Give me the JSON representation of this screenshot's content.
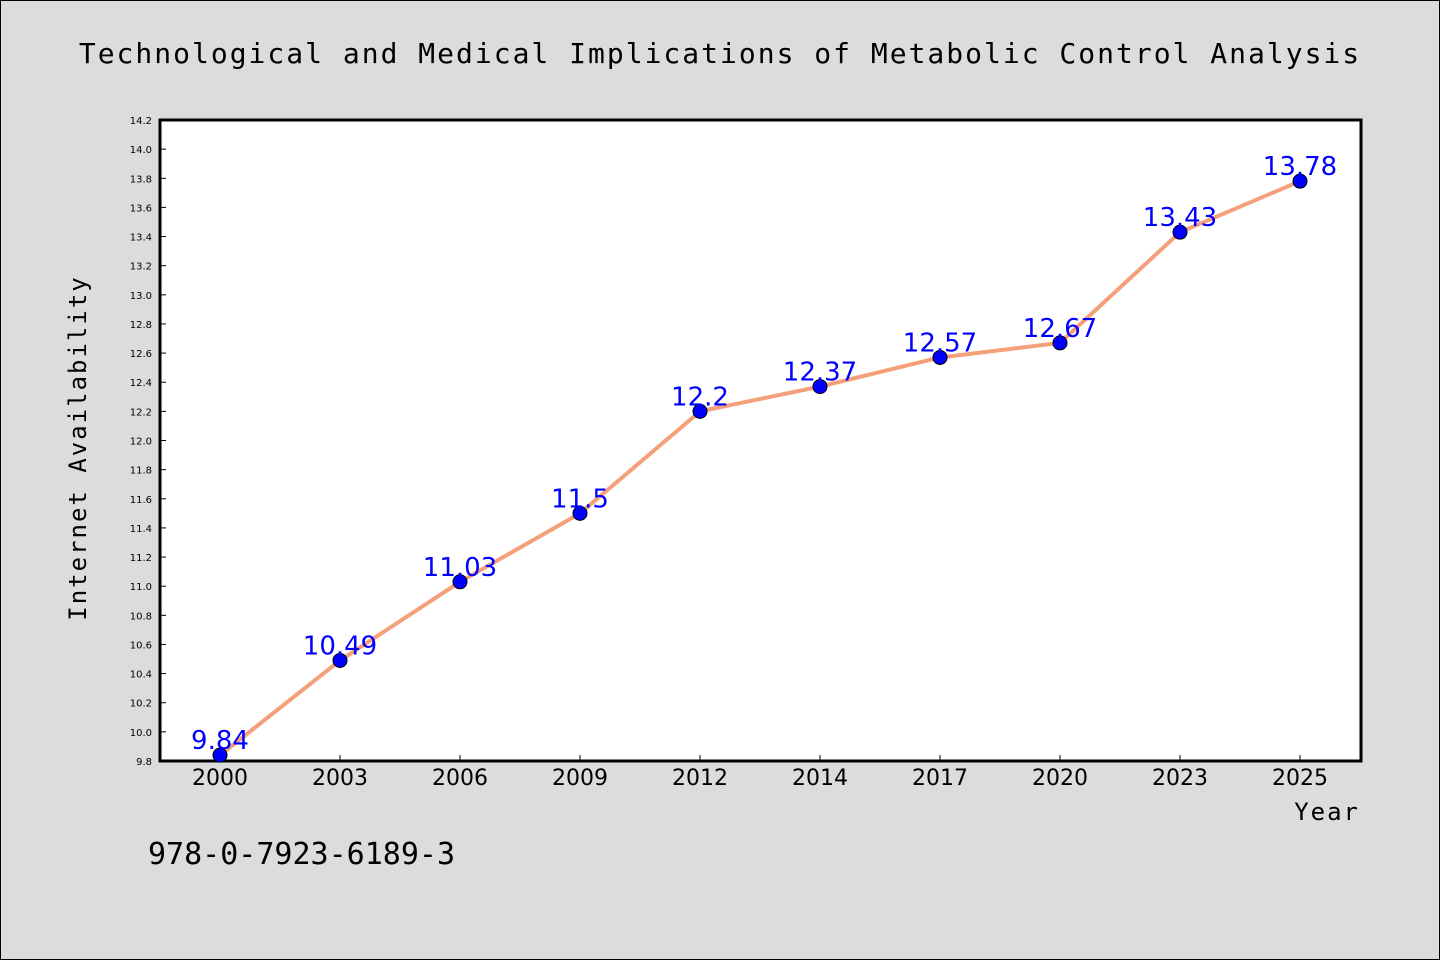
{
  "chart_data": {
    "type": "line",
    "title": "Technological and Medical Implications of Metabolic Control Analysis",
    "xlabel": "Year",
    "ylabel": "Internet Availability",
    "categories": [
      "2000",
      "2003",
      "2006",
      "2009",
      "2012",
      "2014",
      "2017",
      "2020",
      "2023",
      "2025"
    ],
    "series": [
      {
        "values": [
          9.84,
          10.49,
          11.03,
          11.5,
          12.2,
          12.37,
          12.57,
          12.67,
          13.43,
          13.78
        ]
      }
    ],
    "data_labels": [
      "9.84",
      "10.49",
      "11.03",
      "11.5",
      "12.2",
      "12.37",
      "12.57",
      "12.67",
      "13.43",
      "13.78"
    ],
    "ylim": [
      9.8,
      14.2
    ],
    "yticks": [
      "9.8",
      "10.0",
      "10.2",
      "10.4",
      "10.6",
      "10.8",
      "11.0",
      "11.2",
      "11.4",
      "11.6",
      "11.8",
      "12.0",
      "12.2",
      "12.4",
      "12.6",
      "12.8",
      "13.0",
      "13.2",
      "13.4",
      "13.6",
      "13.8",
      "14.0",
      "14.2"
    ],
    "grid": false,
    "legend": "none",
    "colors": {
      "line": "#f4a07a",
      "marker": "#0000ff",
      "data_label": "#0000ff",
      "background": "#dcdcdc",
      "plot_background": "#ffffff"
    }
  },
  "footer": {
    "isbn": "978-0-7923-6189-3"
  }
}
